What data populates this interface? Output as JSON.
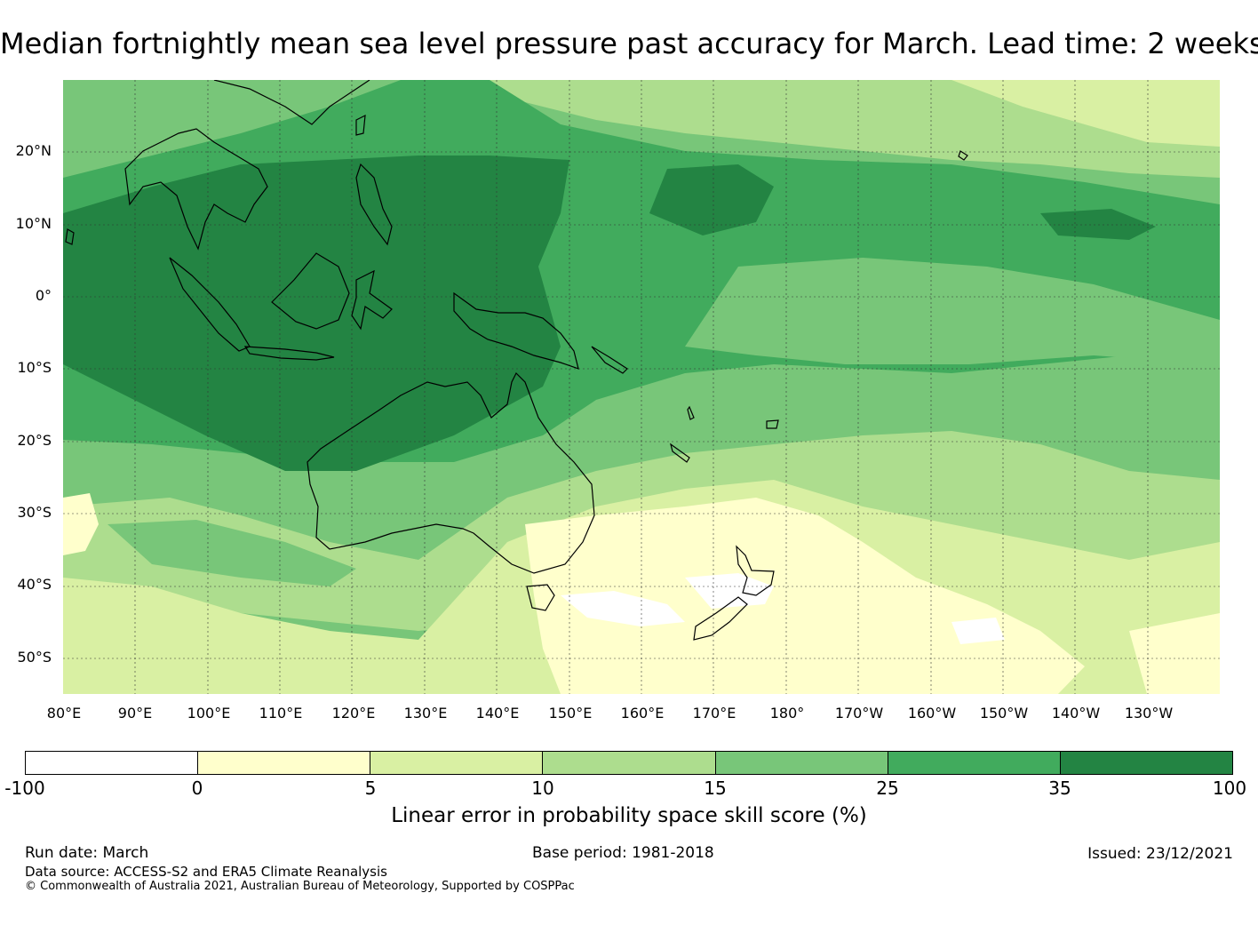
{
  "title": "Median fortnightly mean sea level pressure past accuracy for March. Lead time: 2 weeks",
  "map": {
    "lat_labels": [
      "20°N",
      "10°N",
      "0°",
      "10°S",
      "20°S",
      "30°S",
      "40°S",
      "50°S"
    ],
    "lon_labels": [
      "80°E",
      "90°E",
      "100°E",
      "110°E",
      "120°E",
      "130°E",
      "140°E",
      "150°E",
      "160°E",
      "170°E",
      "180°",
      "170°W",
      "160°W",
      "150°W",
      "140°W",
      "130°W"
    ],
    "extent": {
      "lon_min": 80,
      "lon_max": 240,
      "lat_min": -55,
      "lat_max": 30
    }
  },
  "legend": {
    "colors": [
      "#ffffff",
      "#ffffcc",
      "#d9f0a3",
      "#addd8e",
      "#78c679",
      "#41ab5d",
      "#238443"
    ],
    "ticks": [
      "-100",
      "0",
      "5",
      "10",
      "15",
      "25",
      "35",
      "100"
    ],
    "label": "Linear error in probability space skill score (%)"
  },
  "footer": {
    "run_date": "Run date: March",
    "base_period": "Base period: 1981-2018",
    "issued": "Issued: 23/12/2021",
    "data_source": "Data source: ACCESS-S2 and ERA5 Climate Reanalysis",
    "copyright": "© Commonwealth of Australia 2021, Australian Bureau of Meteorology, Supported by COSPPac"
  }
}
